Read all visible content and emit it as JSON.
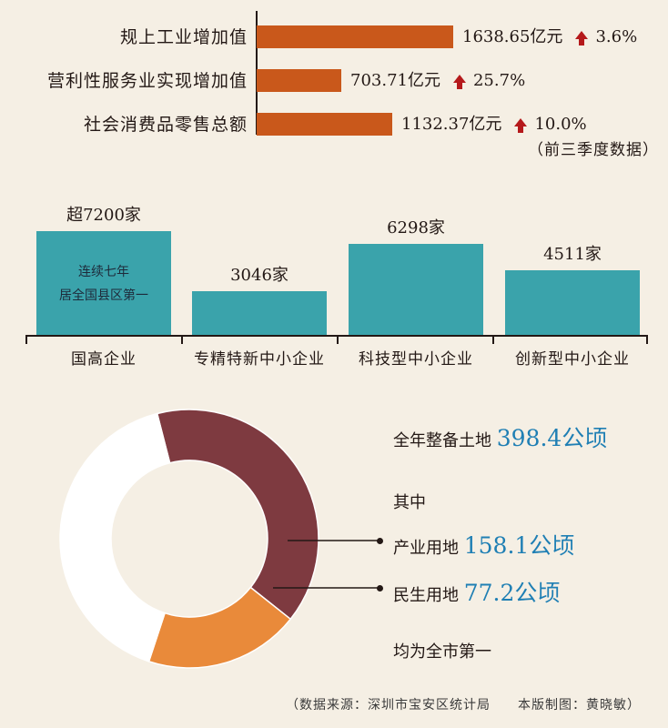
{
  "chart_data": [
    {
      "type": "bar",
      "orientation": "horizontal",
      "categories": [
        "规上工业增加值",
        "营利性服务业实现增加值",
        "社会消费品零售总额"
      ],
      "values": [
        1638.65,
        703.71,
        1132.37
      ],
      "unit": "亿元",
      "growth": [
        "3.6%",
        "25.7%",
        "10.0%"
      ],
      "value_labels": [
        "1638.65亿元",
        "703.71亿元",
        "1132.37亿元"
      ],
      "note": "（前三季度数据）",
      "bar_color": "#c9581b"
    },
    {
      "type": "bar",
      "categories": [
        "国高企业",
        "专精特新中小企业",
        "科技型中小企业",
        "创新型中小企业"
      ],
      "values": [
        7200,
        3046,
        6298,
        4511
      ],
      "unit": "家",
      "value_labels": [
        "超7200家",
        "3046家",
        "6298家",
        "4511家"
      ],
      "annotation": [
        "连续七年",
        "居全国县区第一"
      ],
      "bar_color": "#3aa3ab"
    },
    {
      "type": "pie",
      "style": "donut",
      "total_label": "全年整备土地",
      "total_value": "398.4公顷",
      "total": 398.4,
      "subheading": "其中",
      "slices": [
        {
          "name": "产业用地",
          "value": 158.1,
          "label": "158.1公顷",
          "color": "#7e3a40"
        },
        {
          "name": "民生用地",
          "value": 77.2,
          "label": "77.2公顷",
          "color": "#e98a3a"
        },
        {
          "name": "",
          "value": 163.1,
          "label": "",
          "color": "#ffffff"
        }
      ],
      "conclusion": "均为全市第一"
    }
  ],
  "footer": "（数据来源：深圳市宝安区统计局　　本版制图：黄晓敏）"
}
